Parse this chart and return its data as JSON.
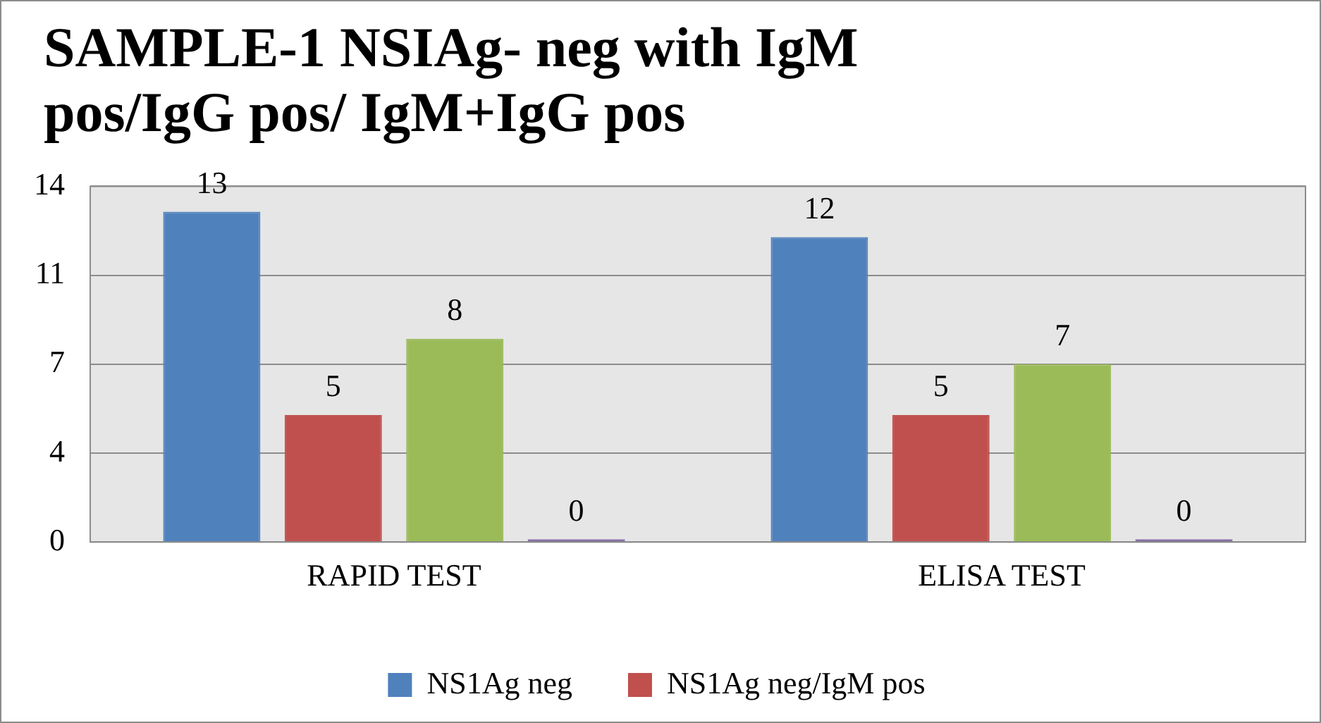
{
  "chart_data": {
    "type": "bar",
    "title": "SAMPLE-1 NSIAg- neg with IgM pos/IgG pos/ IgM+IgG pos",
    "categories": [
      "RAPID TEST",
      "ELISA TEST"
    ],
    "series": [
      {
        "name": "NS1Ag neg",
        "color": "#4f81bd",
        "values": [
          13,
          12
        ]
      },
      {
        "name": "NS1Ag neg/IgM pos",
        "color": "#c0504d",
        "values": [
          5,
          5
        ]
      },
      {
        "color": "#9bbb59",
        "values": [
          8,
          7
        ]
      },
      {
        "color": "#8064a2",
        "values": [
          0,
          0
        ]
      }
    ],
    "ylim": [
      0,
      14
    ],
    "yticks": [
      0,
      {
        "value": 3.5,
        "label": "4"
      },
      7,
      {
        "value": 10.5,
        "label": "11"
      },
      14
    ],
    "grid": "y",
    "legend": "bottom",
    "data_labels": true
  }
}
